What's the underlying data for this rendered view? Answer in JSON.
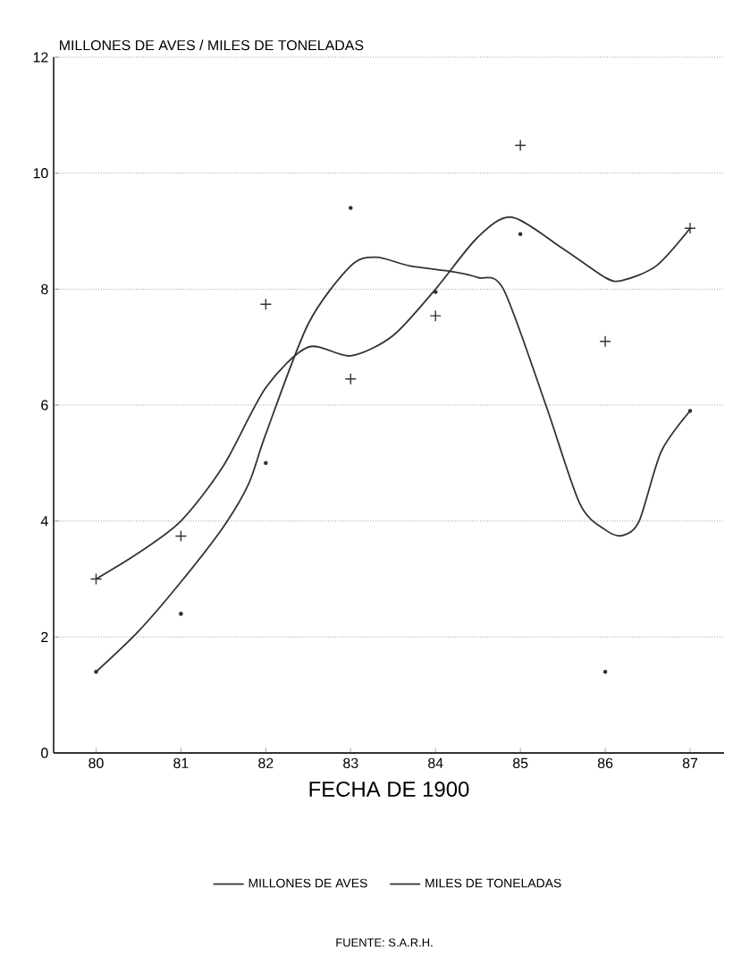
{
  "chart_data": {
    "type": "line",
    "ylabel": "MILLONES DE AVES / MILES DE TONELADAS",
    "xlabel": "FECHA DE 1900",
    "xlim": [
      79.5,
      87.4
    ],
    "ylim": [
      0,
      12
    ],
    "xticks": [
      80,
      81,
      82,
      83,
      84,
      85,
      86,
      87
    ],
    "yticks": [
      0,
      2,
      4,
      6,
      8,
      10,
      12
    ],
    "grid": "y",
    "legend": "bottom",
    "line_style": "solid",
    "annotations": [
      "FUENTE: S.A.R.H."
    ],
    "series": [
      {
        "name": "MILLONES DE AVES",
        "color": "#333333",
        "x": [
          80,
          80.5,
          81,
          81.5,
          81.8,
          82,
          82.5,
          83,
          83.3,
          83.7,
          84.2,
          84.5,
          84.8,
          85.3,
          85.7,
          86,
          86.2,
          86.4,
          86.66,
          87
        ],
        "values": [
          1.4,
          2.1,
          2.95,
          3.9,
          4.65,
          5.5,
          7.4,
          8.4,
          8.55,
          8.4,
          8.3,
          8.2,
          8.0,
          6.0,
          4.3,
          3.85,
          3.75,
          4.0,
          5.2,
          5.9
        ]
      },
      {
        "name": "MILES DE TONELADAS",
        "color": "#333333",
        "x": [
          80,
          80.5,
          81,
          81.5,
          82,
          82.5,
          83,
          83.5,
          84,
          84.5,
          84.9,
          85.5,
          86,
          86.2,
          86.6,
          87
        ],
        "values": [
          3.0,
          3.45,
          4.0,
          4.95,
          6.3,
          7.0,
          6.85,
          7.2,
          8.0,
          8.9,
          9.24,
          8.7,
          8.2,
          8.15,
          8.4,
          9.05
        ]
      },
      {
        "type": "scatter",
        "marker": "circle",
        "color": "#333333",
        "x": [
          80,
          81,
          82,
          83,
          84,
          85,
          86,
          87
        ],
        "values": [
          1.4,
          2.4,
          5.0,
          9.4,
          7.95,
          8.95,
          1.4,
          5.9
        ]
      },
      {
        "type": "scatter",
        "marker": "cross",
        "color": "#333333",
        "x": [
          80,
          81,
          82,
          83,
          84,
          85,
          86,
          87
        ],
        "values": [
          3.0,
          3.74,
          7.74,
          6.45,
          7.54,
          10.48,
          7.1,
          9.05
        ]
      }
    ]
  }
}
